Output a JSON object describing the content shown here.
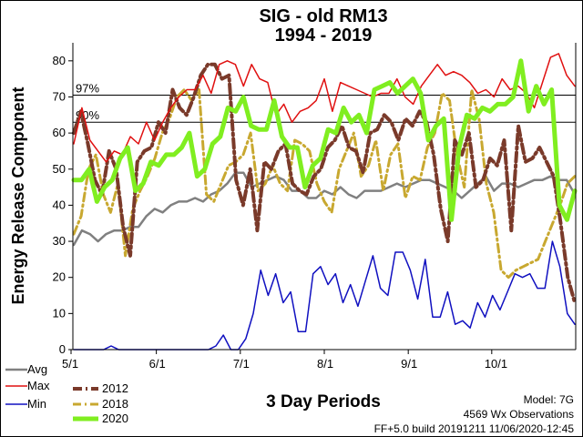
{
  "chart_data": {
    "type": "line",
    "title": "SIG - old RM13",
    "subtitle": "1994 - 2019",
    "xlabel": "3 Day Periods",
    "ylabel": "Energy Release Component",
    "ylim": [
      0,
      85
    ],
    "yticks": [
      "0",
      "10",
      "20",
      "30",
      "40",
      "50",
      "60",
      "70",
      "80"
    ],
    "xticks": [
      "5/1",
      "6/1",
      "7/1",
      "8/1",
      "9/1",
      "10/1"
    ],
    "percentiles": [
      {
        "label": "97%",
        "value": 70.5
      },
      {
        "label": "90%",
        "value": 63
      }
    ],
    "series": [
      {
        "name": "Avg",
        "color": "#808080",
        "values": [
          29,
          33,
          32,
          30,
          32,
          33,
          33,
          34,
          34,
          37,
          39,
          38,
          40,
          41,
          41,
          42,
          41,
          43,
          44,
          46,
          49,
          49,
          45,
          46,
          47,
          48,
          47,
          44,
          44,
          42,
          42,
          44,
          43,
          45,
          43,
          42,
          44,
          44,
          44,
          45,
          46,
          45,
          46,
          47,
          47,
          46,
          45,
          44,
          42,
          44,
          46,
          48,
          44,
          46,
          46,
          45,
          46,
          47,
          47,
          48,
          47,
          47,
          43
        ]
      },
      {
        "name": "Max",
        "color": "#e01010",
        "values": [
          57,
          67,
          58,
          55,
          52,
          55,
          54,
          59,
          57,
          63,
          58,
          63,
          67,
          70,
          72,
          72,
          76,
          71,
          79,
          80,
          79,
          73,
          79,
          75,
          74,
          65,
          68,
          63,
          66,
          67,
          69,
          75,
          66,
          74,
          73,
          72,
          71,
          70,
          71,
          71,
          75,
          70,
          68,
          73,
          76,
          79,
          76,
          77,
          76,
          74,
          71,
          72,
          70,
          75,
          72,
          73,
          71,
          67,
          74,
          81,
          82,
          76,
          73
        ]
      },
      {
        "name": "Min",
        "color": "#1010c0",
        "values": [
          0,
          0,
          0,
          0,
          0,
          1,
          0,
          0,
          0,
          0,
          0,
          0,
          0,
          0,
          0,
          0,
          0,
          0,
          0,
          1,
          4,
          0,
          0,
          3,
          10,
          22,
          15,
          21,
          13,
          16,
          5,
          5,
          21,
          23,
          18,
          21,
          13,
          18,
          12,
          19,
          26,
          17,
          15,
          27,
          27,
          22,
          14,
          25,
          9,
          9,
          16,
          7,
          8,
          6,
          13,
          9,
          15,
          11,
          16,
          21,
          20,
          21,
          17,
          17,
          30,
          23,
          10,
          7
        ]
      },
      {
        "name": "2012",
        "color": "#7a3a2a",
        "values": [
          60,
          66,
          57,
          47,
          43,
          55,
          50,
          34,
          26,
          52,
          55,
          56,
          63,
          60,
          72,
          67,
          65,
          70,
          76,
          79,
          79,
          75,
          76,
          47,
          40,
          50,
          33,
          52,
          50,
          55,
          57,
          46,
          44,
          43,
          48,
          50,
          56,
          58,
          62,
          56,
          55,
          49,
          60,
          61,
          65,
          63,
          58,
          64,
          62,
          66,
          63,
          54,
          39,
          30,
          58,
          54,
          60,
          45,
          47,
          53,
          51,
          58,
          33,
          62,
          52,
          53,
          56,
          52,
          48,
          35,
          20,
          13
        ]
      },
      {
        "name": "2018",
        "color": "#c8a830",
        "values": [
          32,
          37,
          50,
          54,
          43,
          38,
          46,
          26,
          39,
          44,
          48,
          53,
          60,
          64,
          70,
          72,
          69,
          72,
          43,
          41,
          46,
          51,
          52,
          54,
          60,
          44,
          46,
          51,
          46,
          44,
          58,
          57,
          55,
          46,
          41,
          38,
          50,
          55,
          60,
          48,
          51,
          58,
          44,
          54,
          57,
          42,
          48,
          47,
          56,
          60,
          71,
          69,
          54,
          45,
          72,
          64,
          46,
          38,
          22,
          20,
          22,
          23,
          24,
          25,
          30,
          35,
          40,
          46,
          48
        ]
      },
      {
        "name": "2020",
        "color": "#80ee20",
        "values": [
          47,
          47,
          50,
          41,
          45,
          47,
          53,
          56,
          44,
          46,
          52,
          51,
          54,
          54,
          56,
          60,
          48,
          50,
          57,
          59,
          67,
          66,
          70,
          62,
          61,
          61,
          69,
          59,
          56,
          56,
          45,
          51,
          53,
          61,
          60,
          67,
          63,
          65,
          60,
          72,
          73,
          74,
          71,
          73,
          75,
          71,
          58,
          62,
          64,
          36,
          56,
          65,
          64,
          67,
          66,
          68,
          68,
          70,
          80,
          66,
          73,
          68,
          72,
          40,
          36,
          44
        ]
      }
    ]
  },
  "info": {
    "model": "Model: 7G",
    "observations": "4569 Wx Observations",
    "build": "FF+5.0 build 20191211 11/06/2020-12:45"
  }
}
